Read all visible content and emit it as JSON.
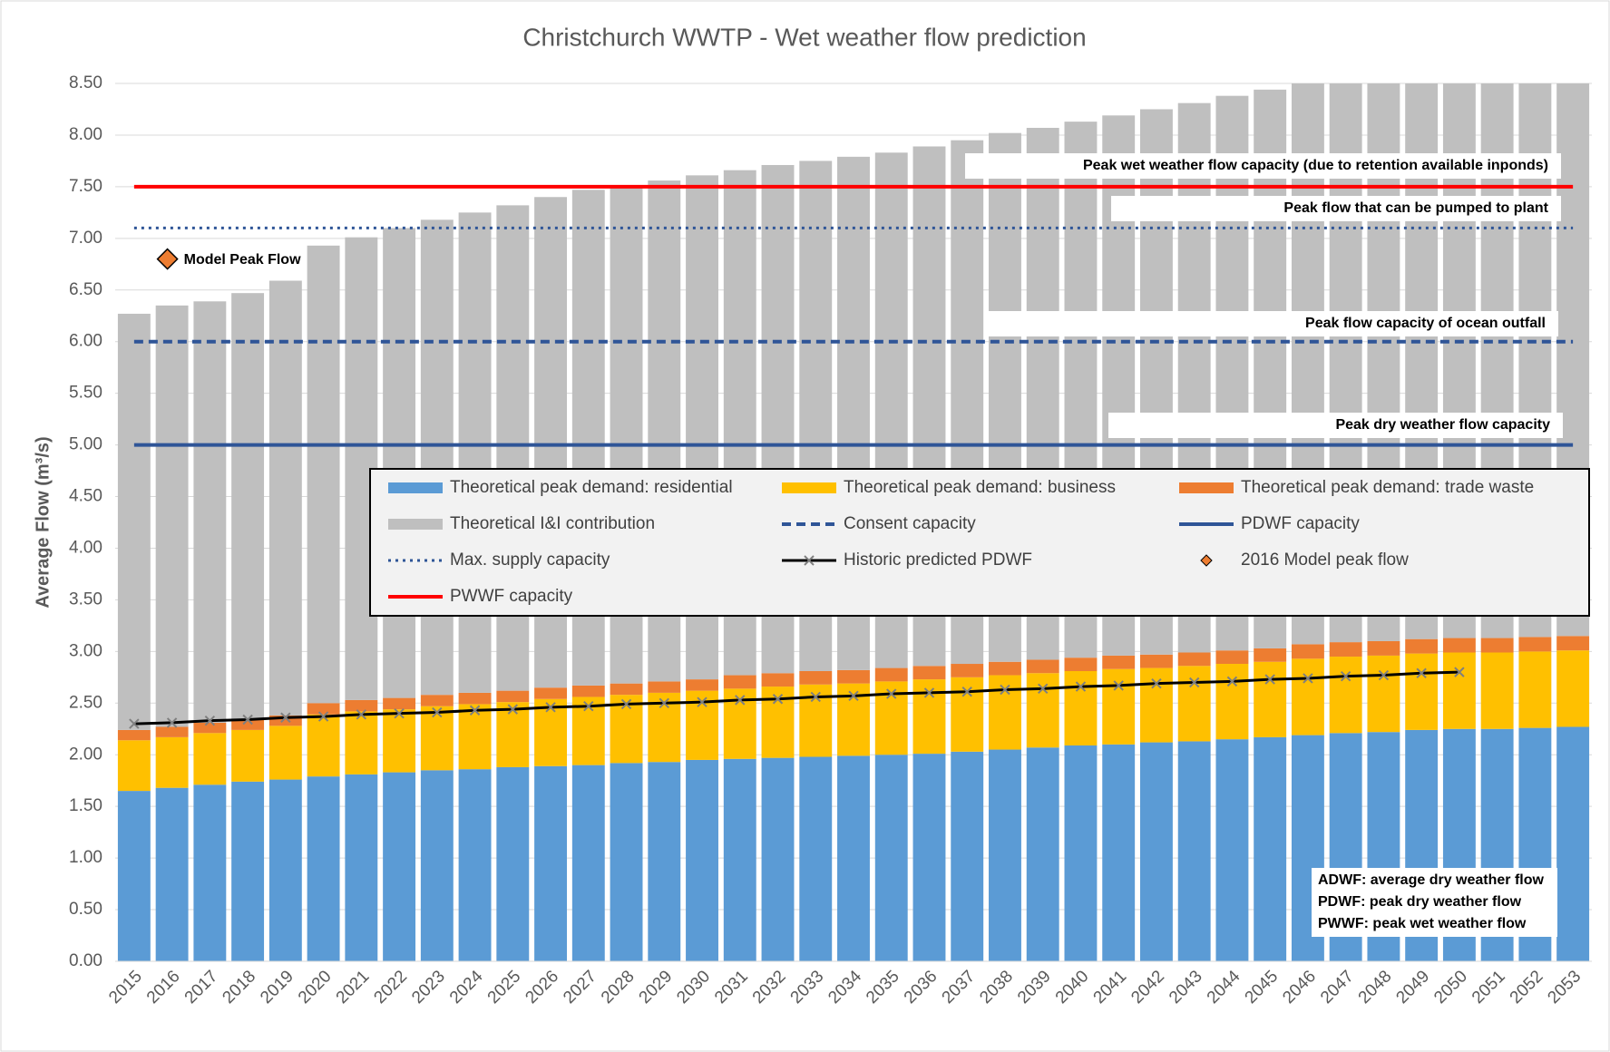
{
  "chart_data": {
    "type": "bar",
    "stacked": true,
    "title": "Christchurch WWTP - Wet weather flow prediction",
    "y_label": "Average Flow (m³/s)",
    "categories": [
      "2015",
      "2016",
      "2017",
      "2018",
      "2019",
      "2020",
      "2021",
      "2022",
      "2023",
      "2024",
      "2025",
      "2026",
      "2027",
      "2028",
      "2029",
      "2030",
      "2031",
      "2032",
      "2033",
      "2034",
      "2035",
      "2036",
      "2037",
      "2038",
      "2039",
      "2040",
      "2041",
      "2042",
      "2043",
      "2044",
      "2045",
      "2046",
      "2047",
      "2048",
      "2049",
      "2050",
      "2051",
      "2052",
      "2053"
    ],
    "series": [
      {
        "name": "Theoretical peak demand: residential",
        "color": "#5b9bd5",
        "values": [
          1.65,
          1.68,
          1.71,
          1.74,
          1.76,
          1.79,
          1.81,
          1.83,
          1.85,
          1.86,
          1.88,
          1.89,
          1.9,
          1.92,
          1.93,
          1.95,
          1.96,
          1.97,
          1.98,
          1.99,
          2.0,
          2.01,
          2.03,
          2.05,
          2.07,
          2.09,
          2.1,
          2.12,
          2.13,
          2.15,
          2.17,
          2.19,
          2.21,
          2.22,
          2.24,
          2.25,
          2.25,
          2.26,
          2.27
        ]
      },
      {
        "name": "Theoretical peak demand: business",
        "color": "#ffc000",
        "values": [
          0.49,
          0.49,
          0.5,
          0.5,
          0.52,
          0.6,
          0.61,
          0.61,
          0.62,
          0.63,
          0.63,
          0.65,
          0.66,
          0.66,
          0.67,
          0.67,
          0.68,
          0.69,
          0.7,
          0.7,
          0.71,
          0.72,
          0.72,
          0.72,
          0.72,
          0.72,
          0.73,
          0.72,
          0.73,
          0.73,
          0.73,
          0.74,
          0.74,
          0.74,
          0.74,
          0.74,
          0.74,
          0.74,
          0.74
        ]
      },
      {
        "name": "Theoretical peak demand: trade waste",
        "color": "#ed7d31",
        "values": [
          0.1,
          0.1,
          0.1,
          0.1,
          0.1,
          0.11,
          0.11,
          0.11,
          0.11,
          0.11,
          0.11,
          0.11,
          0.11,
          0.11,
          0.11,
          0.11,
          0.13,
          0.13,
          0.13,
          0.13,
          0.13,
          0.13,
          0.13,
          0.13,
          0.13,
          0.13,
          0.13,
          0.13,
          0.13,
          0.13,
          0.13,
          0.14,
          0.14,
          0.14,
          0.14,
          0.14,
          0.14,
          0.14,
          0.14
        ]
      },
      {
        "name": "Theoretical I&I contribution",
        "color": "#bfbfbf",
        "values": [
          4.03,
          4.08,
          4.08,
          4.13,
          4.21,
          4.43,
          4.48,
          4.55,
          4.6,
          4.65,
          4.7,
          4.75,
          4.8,
          4.81,
          4.85,
          4.88,
          4.89,
          4.92,
          4.94,
          4.97,
          4.99,
          5.03,
          5.07,
          5.12,
          5.15,
          5.19,
          5.23,
          5.28,
          5.32,
          5.37,
          5.41,
          5.44,
          5.48,
          5.53,
          5.57,
          5.62,
          5.67,
          5.71,
          5.75
        ]
      }
    ],
    "reference_lines": [
      {
        "name": "Consent capacity",
        "color": "#2f5597",
        "style": "dashed",
        "value": 6.0,
        "label": "Peak flow capacity of ocean outfall"
      },
      {
        "name": "PDWF capacity",
        "color": "#2f5597",
        "style": "solid",
        "value": 5.0,
        "label": "Peak dry weather flow capacity"
      },
      {
        "name": "Max. supply capacity",
        "color": "#2f5597",
        "style": "dotted",
        "value": 7.1,
        "label": "Peak flow that can be pumped to plant"
      },
      {
        "name": "PWWF capacity",
        "color": "#ff0000",
        "style": "solid",
        "value": 7.5,
        "label": "Peak wet weather flow capacity (due to retention available inponds)"
      }
    ],
    "line_series": {
      "name": "Historic predicted PDWF",
      "color": "#000000",
      "values": [
        2.3,
        2.31,
        2.33,
        2.34,
        2.36,
        2.37,
        2.39,
        2.4,
        2.41,
        2.43,
        2.44,
        2.46,
        2.47,
        2.49,
        2.5,
        2.51,
        2.53,
        2.54,
        2.56,
        2.57,
        2.59,
        2.6,
        2.61,
        2.63,
        2.64,
        2.66,
        2.67,
        2.69,
        2.7,
        2.71,
        2.73,
        2.74,
        2.76,
        2.77,
        2.79,
        2.8,
        null,
        null,
        null
      ]
    },
    "point": {
      "name": "2016 Model peak flow",
      "color": "#ed7d31",
      "x": "2016",
      "value": 6.8,
      "label": "Model Peak Flow"
    },
    "notes": [
      "ADWF: average dry weather flow",
      "PDWF: peak dry weather flow",
      "PWWF: peak wet weather flow"
    ],
    "ylim": [
      0,
      8.5
    ],
    "yticks": [
      {
        "value": 0,
        "label": "0.00"
      },
      {
        "value": 0.5,
        "label": "0.50"
      },
      {
        "value": 1,
        "label": "1.00"
      },
      {
        "value": 1.5,
        "label": "1.50"
      },
      {
        "value": 2,
        "label": "2.00"
      },
      {
        "value": 2.5,
        "label": "2.50"
      },
      {
        "value": 3,
        "label": "3.00"
      },
      {
        "value": 3.5,
        "label": "3.50"
      },
      {
        "value": 4,
        "label": "4.00"
      },
      {
        "value": 4.5,
        "label": "4.50"
      },
      {
        "value": 5,
        "label": "5.00"
      },
      {
        "value": 5.5,
        "label": "5.50"
      },
      {
        "value": 6,
        "label": "6.00"
      },
      {
        "value": 6.5,
        "label": "6.50"
      },
      {
        "value": 7,
        "label": "7.00"
      },
      {
        "value": 7.5,
        "label": "7.50"
      },
      {
        "value": 8,
        "label": "8.00"
      },
      {
        "value": 8.5,
        "label": "8.50"
      }
    ],
    "grid": true
  }
}
